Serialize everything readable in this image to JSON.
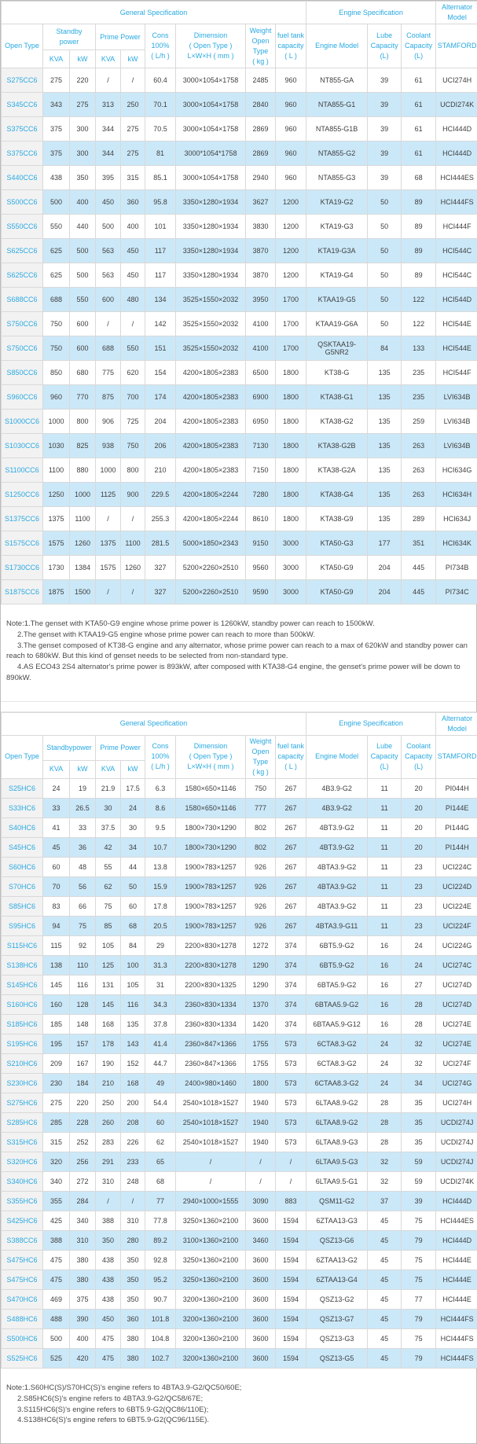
{
  "colors": {
    "accent": "#29a9e2",
    "alt_row": "#cbe8f8",
    "model_cell_bg": "#f2f2f2",
    "border": "#d9d9d9",
    "text": "#3f3f3f"
  },
  "table1": {
    "header": {
      "general": "General Specification",
      "engine": "Engine Specification",
      "alternator": "Alternator\nModel",
      "open_type": "Open Type",
      "standby": "Standby\npower",
      "prime": "Prime Power",
      "cons": "Cons\n100%\n( L/h )",
      "dimension": "Dimension\n( Open Type )\nL×W×H ( mm )",
      "weight": "Weight\nOpen Type\n( kg )",
      "fuel": "fuel tank\ncapacity\n( L )",
      "engine_model": "Engine Model",
      "lube": "Lube\nCapacity\n(L)",
      "coolant": "Coolant\nCapacity\n(L)",
      "stamford": "STAMFORD",
      "units": [
        "KVA",
        "kW",
        "KVA",
        "kW"
      ]
    },
    "rows": [
      [
        "S275CC6",
        "275",
        "220",
        "/",
        "/",
        "60.4",
        "3000×1054×1758",
        "2485",
        "960",
        "NT855-GA",
        "39",
        "61",
        "UCI274H"
      ],
      [
        "S345CC6",
        "343",
        "275",
        "313",
        "250",
        "70.1",
        "3000×1054×1758",
        "2840",
        "960",
        "NTA855-G1",
        "39",
        "61",
        "UCDI274K"
      ],
      [
        "S375CC6",
        "375",
        "300",
        "344",
        "275",
        "70.5",
        "3000×1054×1758",
        "2869",
        "960",
        "NTA855-G1B",
        "39",
        "61",
        "HCI444D"
      ],
      [
        "S375CC6",
        "375",
        "300",
        "344",
        "275",
        "81",
        "3000*1054*1758",
        "2869",
        "960",
        "NTA855-G2",
        "39",
        "61",
        "HCI444D"
      ],
      [
        "S440CC6",
        "438",
        "350",
        "395",
        "315",
        "85.1",
        "3000×1054×1758",
        "2940",
        "960",
        "NTA855-G3",
        "39",
        "68",
        "HCI444ES"
      ],
      [
        "S500CC6",
        "500",
        "400",
        "450",
        "360",
        "95.8",
        "3350×1280×1934",
        "3627",
        "1200",
        "KTA19-G2",
        "50",
        "89",
        "HCI444FS"
      ],
      [
        "S550CC6",
        "550",
        "440",
        "500",
        "400",
        "101",
        "3350×1280×1934",
        "3830",
        "1200",
        "KTA19-G3",
        "50",
        "89",
        "HCI444F"
      ],
      [
        "S625CC6",
        "625",
        "500",
        "563",
        "450",
        "117",
        "3350×1280×1934",
        "3870",
        "1200",
        "KTA19-G3A",
        "50",
        "89",
        "HCI544C"
      ],
      [
        "S625CC6",
        "625",
        "500",
        "563",
        "450",
        "117",
        "3350×1280×1934",
        "3870",
        "1200",
        "KTA19-G4",
        "50",
        "89",
        "HCI544C"
      ],
      [
        "S688CC6",
        "688",
        "550",
        "600",
        "480",
        "134",
        "3525×1550×2032",
        "3950",
        "1700",
        "KTAA19-G5",
        "50",
        "122",
        "HCI544D"
      ],
      [
        "S750CC6",
        "750",
        "600",
        "/",
        "/",
        "142",
        "3525×1550×2032",
        "4100",
        "1700",
        "KTAA19-G6A",
        "50",
        "122",
        "HCI544E"
      ],
      [
        "S750CC6",
        "750",
        "600",
        "688",
        "550",
        "151",
        "3525×1550×2032",
        "4100",
        "1700",
        "QSKTAA19-G5NR2",
        "84",
        "133",
        "HCI544E"
      ],
      [
        "S850CC6",
        "850",
        "680",
        "775",
        "620",
        "154",
        "4200×1805×2383",
        "6500",
        "1800",
        "KT38-G",
        "135",
        "235",
        "HCI544F"
      ],
      [
        "S960CC6",
        "960",
        "770",
        "875",
        "700",
        "174",
        "4200×1805×2383",
        "6900",
        "1800",
        "KTA38-G1",
        "135",
        "235",
        "LVI634B"
      ],
      [
        "S1000CC6",
        "1000",
        "800",
        "906",
        "725",
        "204",
        "4200×1805×2383",
        "6950",
        "1800",
        "KTA38-G2",
        "135",
        "259",
        "LVI634B"
      ],
      [
        "S1030CC6",
        "1030",
        "825",
        "938",
        "750",
        "206",
        "4200×1805×2383",
        "7130",
        "1800",
        "KTA38-G2B",
        "135",
        "263",
        "LVI634B"
      ],
      [
        "S1100CC6",
        "1100",
        "880",
        "1000",
        "800",
        "210",
        "4200×1805×2383",
        "7150",
        "1800",
        "KTA38-G2A",
        "135",
        "263",
        "HCI634G"
      ],
      [
        "S1250CC6",
        "1250",
        "1000",
        "1125",
        "900",
        "229.5",
        "4200×1805×2244",
        "7280",
        "1800",
        "KTA38-G4",
        "135",
        "263",
        "HCI634H"
      ],
      [
        "S1375CC6",
        "1375",
        "1100",
        "/",
        "/",
        "255.3",
        "4200×1805×2244",
        "8610",
        "1800",
        "KTA38-G9",
        "135",
        "289",
        "HCI634J"
      ],
      [
        "S1575CC6",
        "1575",
        "1260",
        "1375",
        "1100",
        "281.5",
        "5000×1850×2343",
        "9150",
        "3000",
        "KTA50-G3",
        "177",
        "351",
        "HCI634K"
      ],
      [
        "S1730CC6",
        "1730",
        "1384",
        "1575",
        "1260",
        "327",
        "5200×2260×2510",
        "9560",
        "3000",
        "KTA50-G9",
        "204",
        "445",
        "PI734B"
      ],
      [
        "S1875CC6",
        "1875",
        "1500",
        "/",
        "/",
        "327",
        "5200×2260×2510",
        "9590",
        "3000",
        "KTA50-G9",
        "204",
        "445",
        "PI734C"
      ]
    ]
  },
  "note1": {
    "lines": [
      "Note:1.The genset with KTA50-G9 engine whose prime power is 1260kW, standby power can reach to 1500kW.",
      "2.The genset with KTAA19-G5 engine whose prime power can reach to more than 500kW.",
      "3.The genset composed of KT38-G engine and any alternator, whose prime power can reach to a max of 620kW and standby power can reach to 680kW. But this kind of genset needs to be selected from non-standard type.",
      "4.AS ECO43 2S4 alternator's prime power is 893kW, after composed with KTA38-G4 engine, the genset's prime power will be down to 890kW."
    ]
  },
  "table2": {
    "header": {
      "general": "General Specification",
      "engine": "Engine Specification",
      "alternator": "Alternator\nModel",
      "open_type": "Open Type",
      "standby": "Standbypower",
      "prime": "Prime Power",
      "cons": "Cons\n100%\n( L/h )",
      "dimension": "Dimension\n( Open Type )\nL×W×H ( mm )",
      "weight": "Weight\nOpen Type\n( kg )",
      "fuel": "fuel tank\ncapacity\n( L )",
      "engine_model": "Engine Model",
      "lube": "Lube\nCapacity\n(L)",
      "coolant": "Coolant\nCapacity\n(L)",
      "stamford": "STAMFORD",
      "units": [
        "KVA",
        "kW",
        "KVA",
        "kW"
      ]
    },
    "rows": [
      [
        "S25HC6",
        "24",
        "19",
        "21.9",
        "17.5",
        "6.3",
        "1580×650×1146",
        "750",
        "267",
        "4B3.9-G2",
        "11",
        "20",
        "PI044H"
      ],
      [
        "S33HC6",
        "33",
        "26.5",
        "30",
        "24",
        "8.6",
        "1580×650×1146",
        "777",
        "267",
        "4B3.9-G2",
        "11",
        "20",
        "PI144E"
      ],
      [
        "S40HC6",
        "41",
        "33",
        "37.5",
        "30",
        "9.5",
        "1800×730×1290",
        "802",
        "267",
        "4BT3.9-G2",
        "11",
        "20",
        "PI144G"
      ],
      [
        "S45HC6",
        "45",
        "36",
        "42",
        "34",
        "10.7",
        "1800×730×1290",
        "802",
        "267",
        "4BT3.9-G2",
        "11",
        "20",
        "PI144H"
      ],
      [
        "S60HC6",
        "60",
        "48",
        "55",
        "44",
        "13.8",
        "1900×783×1257",
        "926",
        "267",
        "4BTA3.9-G2",
        "11",
        "23",
        "UCI224C"
      ],
      [
        "S70HC6",
        "70",
        "56",
        "62",
        "50",
        "15.9",
        "1900×783×1257",
        "926",
        "267",
        "4BTA3.9-G2",
        "11",
        "23",
        "UCI224D"
      ],
      [
        "S85HC6",
        "83",
        "66",
        "75",
        "60",
        "17.8",
        "1900×783×1257",
        "926",
        "267",
        "4BTA3.9-G2",
        "11",
        "23",
        "UCI224E"
      ],
      [
        "S95HC6",
        "94",
        "75",
        "85",
        "68",
        "20.5",
        "1900×783×1257",
        "926",
        "267",
        "4BTA3.9-G11",
        "11",
        "23",
        "UCI224F"
      ],
      [
        "S115HC6",
        "115",
        "92",
        "105",
        "84",
        "29",
        "2200×830×1278",
        "1272",
        "374",
        "6BT5.9-G2",
        "16",
        "24",
        "UCI224G"
      ],
      [
        "S138HC6",
        "138",
        "110",
        "125",
        "100",
        "31.3",
        "2200×830×1278",
        "1290",
        "374",
        "6BT5.9-G2",
        "16",
        "24",
        "UCI274C"
      ],
      [
        "S145HC6",
        "145",
        "116",
        "131",
        "105",
        "31",
        "2200×830×1325",
        "1290",
        "374",
        "6BTA5.9-G2",
        "16",
        "27",
        "UCI274D"
      ],
      [
        "S160HC6",
        "160",
        "128",
        "145",
        "116",
        "34.3",
        "2360×830×1334",
        "1370",
        "374",
        "6BTAA5.9-G2",
        "16",
        "28",
        "UCI274D"
      ],
      [
        "S185HC6",
        "185",
        "148",
        "168",
        "135",
        "37.8",
        "2360×830×1334",
        "1420",
        "374",
        "6BTAA5.9-G12",
        "16",
        "28",
        "UCI274E"
      ],
      [
        "S195HC6",
        "195",
        "157",
        "178",
        "143",
        "41.4",
        "2360×847×1366",
        "1755",
        "573",
        "6CTA8.3-G2",
        "24",
        "32",
        "UCI274E"
      ],
      [
        "S210HC6",
        "209",
        "167",
        "190",
        "152",
        "44.7",
        "2360×847×1366",
        "1755",
        "573",
        "6CTA8.3-G2",
        "24",
        "32",
        "UCI274F"
      ],
      [
        "S230HC6",
        "230",
        "184",
        "210",
        "168",
        "49",
        "2400×980×1460",
        "1800",
        "573",
        "6CTAA8.3-G2",
        "24",
        "34",
        "UCI274G"
      ],
      [
        "S275HC6",
        "275",
        "220",
        "250",
        "200",
        "54.4",
        "2540×1018×1527",
        "1940",
        "573",
        "6LTAA8.9-G2",
        "28",
        "35",
        "UCI274H"
      ],
      [
        "S285HC6",
        "285",
        "228",
        "260",
        "208",
        "60",
        "2540×1018×1527",
        "1940",
        "573",
        "6LTAA8.9-G2",
        "28",
        "35",
        "UCDI274J"
      ],
      [
        "S315HC6",
        "315",
        "252",
        "283",
        "226",
        "62",
        "2540×1018×1527",
        "1940",
        "573",
        "6LTAA8.9-G3",
        "28",
        "35",
        "UCDI274J"
      ],
      [
        "S320HC6",
        "320",
        "256",
        "291",
        "233",
        "65",
        "/",
        "/",
        "/",
        "6LTAA9.5-G3",
        "32",
        "59",
        "UCDI274J"
      ],
      [
        "S340HC6",
        "340",
        "272",
        "310",
        "248",
        "68",
        "/",
        "/",
        "/",
        "6LTAA9.5-G1",
        "32",
        "59",
        "UCDI274K"
      ],
      [
        "S355HC6",
        "355",
        "284",
        "/",
        "/",
        "77",
        "2940×1000×1555",
        "3090",
        "883",
        "QSM11-G2",
        "37",
        "39",
        "HCI444D"
      ],
      [
        "S425HC6",
        "425",
        "340",
        "388",
        "310",
        "77.8",
        "3250×1360×2100",
        "3600",
        "1594",
        "6ZTAA13-G3",
        "45",
        "75",
        "HCI444ES"
      ],
      [
        "S388CC6",
        "388",
        "310",
        "350",
        "280",
        "89.2",
        "3100×1360×2100",
        "3460",
        "1594",
        "QSZ13-G6",
        "45",
        "79",
        "HCI444D"
      ],
      [
        "S475HC6",
        "475",
        "380",
        "438",
        "350",
        "92.8",
        "3250×1360×2100",
        "3600",
        "1594",
        "6ZTAA13-G2",
        "45",
        "75",
        "HCI444E"
      ],
      [
        "S475HC6",
        "475",
        "380",
        "438",
        "350",
        "95.2",
        "3250×1360×2100",
        "3600",
        "1594",
        "6ZTAA13-G4",
        "45",
        "75",
        "HCI444E"
      ],
      [
        "S470HC6",
        "469",
        "375",
        "438",
        "350",
        "90.7",
        "3200×1360×2100",
        "3600",
        "1594",
        "QSZ13-G2",
        "45",
        "77",
        "HCI444E"
      ],
      [
        "S488HC6",
        "488",
        "390",
        "450",
        "360",
        "101.8",
        "3200×1360×2100",
        "3600",
        "1594",
        "QSZ13-G7",
        "45",
        "79",
        "HCI444FS"
      ],
      [
        "S500HC6",
        "500",
        "400",
        "475",
        "380",
        "104.8",
        "3200×1360×2100",
        "3600",
        "1594",
        "QSZ13-G3",
        "45",
        "75",
        "HCI444FS"
      ],
      [
        "S525HC6",
        "525",
        "420",
        "475",
        "380",
        "102.7",
        "3200×1360×2100",
        "3600",
        "1594",
        "QSZ13-G5",
        "45",
        "79",
        "HCI444FS"
      ]
    ]
  },
  "note2": {
    "lines": [
      "Note:1.S60HC(S)/S70HC(S)'s engine refers to 4BTA3.9-G2/QC50/60E;",
      "2.S85HC6(S)'s engine refers to 4BTA3.9-G2/QC58/67E;",
      "3.S115HC6(S)'s engine refers to 6BT5.9-G2(QC86/110E);",
      "4.S138HC6(S)'s engine refers to 6BT5.9-G2(QC96/115E)."
    ]
  }
}
